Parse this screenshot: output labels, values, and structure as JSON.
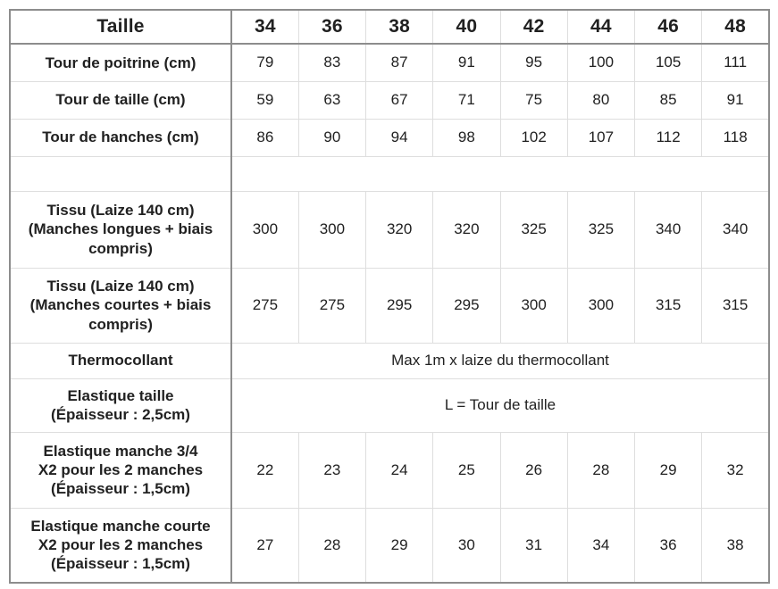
{
  "table": {
    "header_label": "Taille",
    "columns": [
      "34",
      "36",
      "38",
      "40",
      "42",
      "44",
      "46",
      "48"
    ],
    "rows": [
      {
        "kind": "values",
        "label": "Tour de poitrine (cm)",
        "values": [
          "79",
          "83",
          "87",
          "91",
          "95",
          "100",
          "105",
          "111"
        ]
      },
      {
        "kind": "values",
        "label": "Tour de taille (cm)",
        "values": [
          "59",
          "63",
          "67",
          "71",
          "75",
          "80",
          "85",
          "91"
        ]
      },
      {
        "kind": "values",
        "label": "Tour de hanches (cm)",
        "values": [
          "86",
          "90",
          "94",
          "98",
          "102",
          "107",
          "112",
          "118"
        ]
      },
      {
        "kind": "empty",
        "label": ""
      },
      {
        "kind": "values",
        "label": "Tissu (Laize 140 cm)\n(Manches longues + biais\ncompris)",
        "values": [
          "300",
          "300",
          "320",
          "320",
          "325",
          "325",
          "340",
          "340"
        ]
      },
      {
        "kind": "values",
        "label": "Tissu (Laize 140 cm)\n(Manches courtes + biais\ncompris)",
        "values": [
          "275",
          "275",
          "295",
          "295",
          "300",
          "300",
          "315",
          "315"
        ]
      },
      {
        "kind": "span",
        "label": "Thermocollant",
        "span_text": "Max 1m x laize du thermocollant"
      },
      {
        "kind": "span",
        "label": "Elastique taille\n(Épaisseur : 2,5cm)",
        "span_text": "L = Tour de taille"
      },
      {
        "kind": "values",
        "label": "Elastique manche 3/4\nX2 pour les 2 manches\n(Épaisseur : 1,5cm)",
        "values": [
          "22",
          "23",
          "24",
          "25",
          "26",
          "28",
          "29",
          "32"
        ]
      },
      {
        "kind": "values",
        "label": "Elastique manche courte\nX2 pour les 2 manches\n(Épaisseur : 1,5cm)",
        "values": [
          "27",
          "28",
          "29",
          "30",
          "31",
          "34",
          "36",
          "38"
        ]
      }
    ],
    "colors": {
      "border_dark": "#8d8d8d",
      "border_light": "#dedede",
      "text": "#212121",
      "background": "#ffffff"
    }
  }
}
